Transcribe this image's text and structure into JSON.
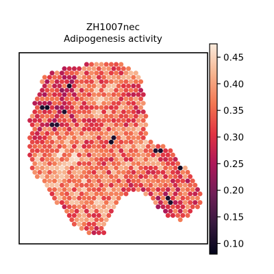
{
  "chart_data": {
    "type": "scatter",
    "subtype": "hexbin spatial map",
    "title": "ZH1007nec",
    "subtitle": "Adipogenesis activity",
    "xlabel": "",
    "ylabel": "",
    "axis_ticks_shown": false,
    "grid": false,
    "colorbar": {
      "position": "right",
      "colormap": "rocket",
      "vmin": 0.08,
      "vmax": 0.475,
      "ticks": [
        0.1,
        0.15,
        0.2,
        0.25,
        0.3,
        0.35,
        0.4,
        0.45
      ],
      "tick_labels": [
        "0.10",
        "0.15",
        "0.20",
        "0.25",
        "0.30",
        "0.35",
        "0.40",
        "0.45"
      ],
      "colors": [
        "#03051a",
        "#36193e",
        "#701f57",
        "#ad1759",
        "#e13342",
        "#f37651",
        "#f6b48f",
        "#faebdd"
      ]
    },
    "value_summary": {
      "typical_range": [
        0.25,
        0.45
      ],
      "low_spots": 0.09
    }
  }
}
